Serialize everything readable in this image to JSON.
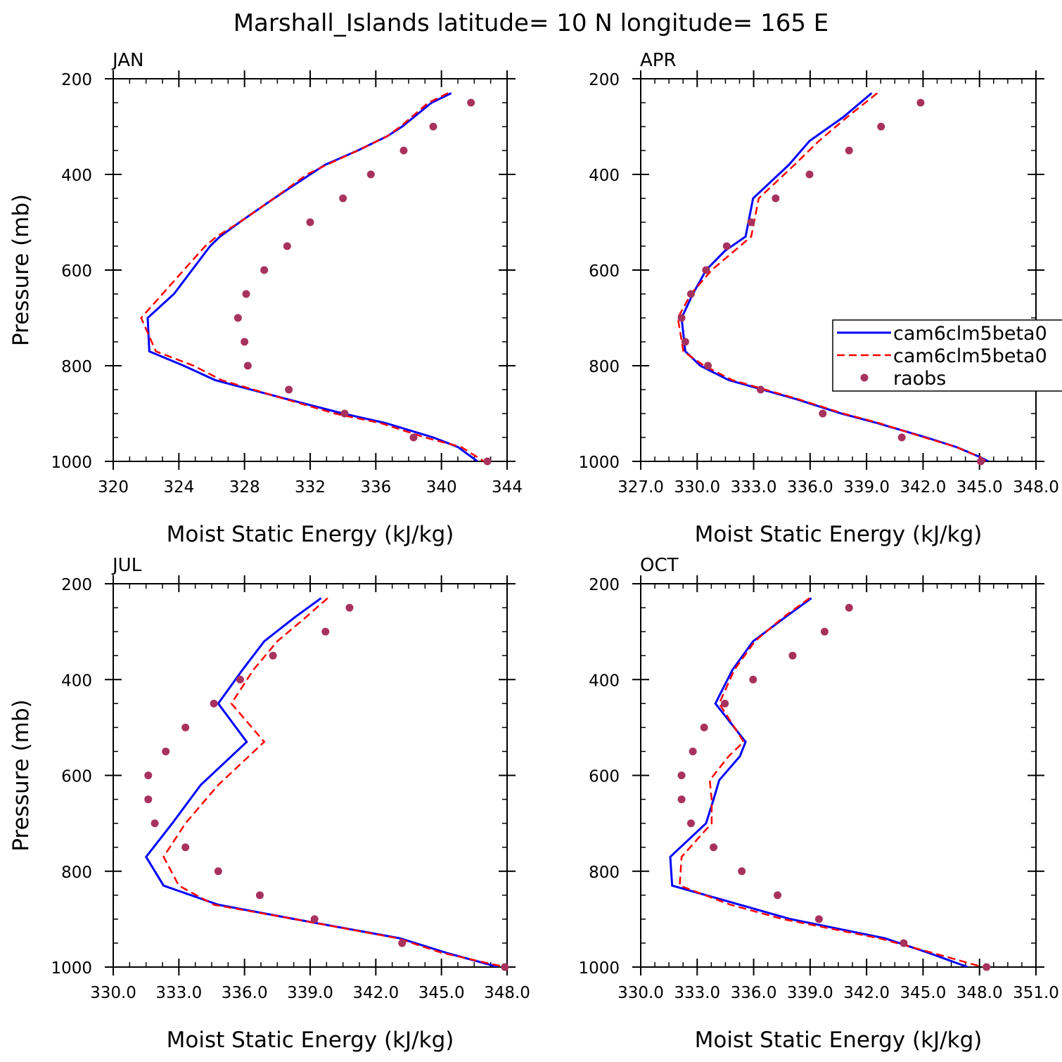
{
  "suptitle": "Marshall_Islands  latitude= 10 N longitude= 165 E",
  "colors": {
    "model_a": "#0000ff",
    "model_b": "#ff0000",
    "raobs": "#a8325e"
  },
  "legend": {
    "entries": [
      {
        "label": "cam6clm5beta0",
        "style": "solid"
      },
      {
        "label": "cam6clm5beta0",
        "style": "dashed"
      },
      {
        "label": "raobs",
        "style": "marker"
      }
    ]
  },
  "chart_data": [
    {
      "type": "line",
      "title": "JAN",
      "xlabel": "Moist Static Energy (kJ/kg)",
      "ylabel": "Pressure (mb)",
      "xlim": [
        320,
        344
      ],
      "ylim": [
        1000,
        200
      ],
      "xticks": [
        320,
        324,
        328,
        332,
        336,
        340,
        344
      ],
      "xtick_labels": [
        "320",
        "324",
        "328",
        "332",
        "336",
        "340",
        "344"
      ],
      "yticks": [
        200,
        400,
        600,
        800,
        1000
      ],
      "ytick_labels": [
        "200",
        "400",
        "600",
        "800",
        "1000"
      ],
      "pressure": [
        230,
        250,
        300,
        320,
        350,
        380,
        400,
        450,
        500,
        530,
        550,
        600,
        650,
        700,
        770,
        800,
        830,
        870,
        900,
        920,
        950,
        970,
        1000
      ],
      "series": [
        {
          "name": "cam6clm5beta0 (solid)",
          "values": [
            340.6,
            339.4,
            337.6,
            336.7,
            334.9,
            332.9,
            332.0,
            329.8,
            327.7,
            326.5,
            325.9,
            324.8,
            323.7,
            322.1,
            322.2,
            324.3,
            326.2,
            330.6,
            334.0,
            336.6,
            339.5,
            341.0,
            342.2
          ]
        },
        {
          "name": "cam6clm5beta0 (dashed)",
          "values": [
            340.4,
            339.2,
            337.5,
            336.7,
            334.9,
            333.0,
            331.8,
            329.8,
            327.7,
            326.3,
            325.6,
            324.3,
            323.0,
            321.7,
            322.6,
            324.9,
            326.6,
            330.5,
            333.5,
            336.3,
            339.0,
            341.2,
            342.6
          ]
        }
      ],
      "raobs": {
        "pressure": [
          250,
          300,
          350,
          400,
          450,
          500,
          550,
          600,
          650,
          700,
          750,
          800,
          850,
          900,
          950,
          1000
        ],
        "values": [
          341.8,
          339.5,
          337.7,
          335.7,
          334.0,
          332.0,
          330.6,
          329.2,
          328.1,
          327.6,
          328.0,
          328.2,
          330.7,
          334.1,
          338.3,
          342.8
        ]
      }
    },
    {
      "type": "line",
      "title": "APR",
      "xlabel": "Moist Static Energy (kJ/kg)",
      "ylabel": "",
      "xlim": [
        327.03,
        348.03
      ],
      "ylim": [
        1000,
        200
      ],
      "xticks": [
        327.03,
        330.03,
        333.03,
        336.03,
        339.03,
        342.03,
        345.03,
        348.03
      ],
      "xtick_labels": [
        "327.0",
        "330.0",
        "333.0",
        "336.0",
        "339.0",
        "342.0",
        "345.0",
        "348.0"
      ],
      "yticks": [
        200,
        400,
        600,
        800,
        1000
      ],
      "ytick_labels": [
        "200",
        "400",
        "600",
        "800",
        "1000"
      ],
      "pressure": [
        230,
        280,
        330,
        380,
        450,
        530,
        560,
        600,
        650,
        700,
        770,
        800,
        830,
        870,
        900,
        920,
        950,
        970,
        990,
        1000
      ],
      "series": [
        {
          "name": "cam6clm5beta0 (solid)",
          "values": [
            339.3,
            337.8,
            336.0,
            334.9,
            333.0,
            332.6,
            331.5,
            330.5,
            329.8,
            329.2,
            329.4,
            330.2,
            331.7,
            335.3,
            337.7,
            339.6,
            342.2,
            343.8,
            345.0,
            345.5
          ]
        },
        {
          "name": "cam6clm5beta0 (dashed)",
          "values": [
            339.6,
            338.0,
            336.5,
            335.2,
            333.3,
            332.9,
            332.0,
            330.8,
            329.7,
            329.0,
            329.3,
            330.4,
            331.9,
            335.4,
            337.8,
            339.7,
            342.1,
            343.8,
            345.0,
            345.4
          ]
        }
      ],
      "raobs": {
        "pressure": [
          250,
          300,
          350,
          400,
          450,
          500,
          550,
          600,
          650,
          700,
          750,
          800,
          850,
          900,
          950,
          1000
        ],
        "values": [
          341.9,
          339.8,
          338.1,
          336.0,
          334.2,
          332.9,
          331.6,
          330.5,
          329.7,
          329.2,
          329.4,
          330.6,
          333.4,
          336.7,
          340.9,
          345.1
        ]
      }
    },
    {
      "type": "line",
      "title": "JUL",
      "xlabel": "Moist Static Energy (kJ/kg)",
      "ylabel": "Pressure (mb)",
      "xlim": [
        330,
        348
      ],
      "ylim": [
        1000,
        200
      ],
      "xticks": [
        330,
        333,
        336,
        339,
        342,
        345,
        348
      ],
      "xtick_labels": [
        "330.0",
        "333.0",
        "336.0",
        "339.0",
        "342.0",
        "345.0",
        "348.0"
      ],
      "yticks": [
        200,
        400,
        600,
        800,
        1000
      ],
      "ytick_labels": [
        "200",
        "400",
        "600",
        "800",
        "1000"
      ],
      "pressure": [
        230,
        270,
        320,
        380,
        450,
        530,
        620,
        700,
        770,
        830,
        870,
        900,
        940,
        970,
        1000
      ],
      "series": [
        {
          "name": "cam6clm5beta0 (solid)",
          "values": [
            339.5,
            338.3,
            336.9,
            335.9,
            334.8,
            336.1,
            334.0,
            332.7,
            331.5,
            332.3,
            334.8,
            338.3,
            343.1,
            345.2,
            347.6
          ]
        },
        {
          "name": "cam6clm5beta0 (dashed)",
          "values": [
            339.8,
            338.8,
            337.5,
            336.4,
            335.4,
            336.9,
            334.8,
            333.3,
            332.3,
            333.0,
            334.6,
            338.3,
            343.0,
            345.0,
            347.9
          ]
        }
      ],
      "raobs": {
        "pressure": [
          250,
          300,
          350,
          400,
          450,
          500,
          550,
          600,
          650,
          700,
          750,
          800,
          850,
          900,
          950,
          1000
        ],
        "values": [
          340.8,
          339.7,
          337.3,
          335.8,
          334.6,
          333.3,
          332.4,
          331.6,
          331.6,
          331.9,
          333.3,
          334.8,
          336.7,
          339.2,
          343.2,
          347.9
        ]
      }
    },
    {
      "type": "line",
      "title": "OCT",
      "xlabel": "Moist Static Energy (kJ/kg)",
      "ylabel": "",
      "xlim": [
        330.03,
        351.03
      ],
      "ylim": [
        1000,
        200
      ],
      "xticks": [
        330.03,
        333.03,
        336.03,
        339.03,
        342.03,
        345.03,
        348.03,
        351.03
      ],
      "xtick_labels": [
        "330.0",
        "333.0",
        "336.0",
        "339.0",
        "342.0",
        "345.0",
        "348.0",
        "351.0"
      ],
      "yticks": [
        200,
        400,
        600,
        800,
        1000
      ],
      "ytick_labels": [
        "200",
        "400",
        "600",
        "800",
        "1000"
      ],
      "pressure": [
        230,
        270,
        320,
        380,
        450,
        530,
        560,
        610,
        650,
        700,
        770,
        830,
        870,
        900,
        940,
        970,
        1000
      ],
      "series": [
        {
          "name": "cam6clm5beta0 (solid)",
          "values": [
            339.1,
            337.7,
            336.0,
            334.9,
            334.0,
            335.6,
            335.3,
            334.2,
            333.9,
            333.5,
            331.6,
            331.7,
            335.3,
            338.0,
            343.0,
            345.3,
            347.4
          ]
        },
        {
          "name": "cam6clm5beta0 (dashed)",
          "values": [
            339.0,
            337.6,
            336.1,
            335.0,
            334.2,
            335.5,
            334.7,
            333.7,
            333.8,
            333.8,
            332.2,
            332.1,
            334.8,
            337.6,
            342.7,
            345.5,
            348.2
          ]
        }
      ],
      "raobs": {
        "pressure": [
          250,
          300,
          350,
          400,
          450,
          500,
          550,
          600,
          650,
          700,
          750,
          800,
          850,
          900,
          950,
          1000
        ],
        "values": [
          341.1,
          339.8,
          338.1,
          336.0,
          334.5,
          333.4,
          332.8,
          332.2,
          332.2,
          332.7,
          333.9,
          335.4,
          337.3,
          339.5,
          344.0,
          348.4
        ]
      }
    }
  ]
}
